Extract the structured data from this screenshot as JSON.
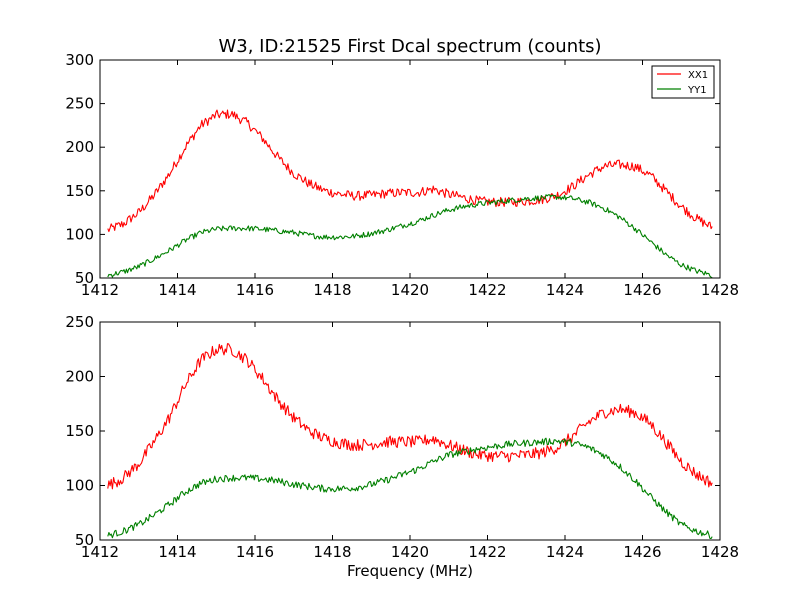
{
  "figure": {
    "title": "W3, ID:21525 First Dcal spectrum (counts)",
    "xlabel": "Frequency (MHz)"
  },
  "colors": {
    "XX1": "#ff0000",
    "YY1": "#008000"
  },
  "chart_data": [
    {
      "type": "line",
      "title": "W3, ID:21525 First Dcal spectrum (counts)",
      "xlabel": "",
      "ylabel": "",
      "xlim": [
        1412,
        1428
      ],
      "ylim": [
        50,
        300
      ],
      "xticks": [
        1412,
        1414,
        1416,
        1418,
        1420,
        1422,
        1424,
        1426,
        1428
      ],
      "yticks": [
        50,
        100,
        150,
        200,
        250,
        300
      ],
      "legend": {
        "placement": "top-right",
        "entries": [
          "XX1",
          "YY1"
        ]
      },
      "grid": false,
      "series": [
        {
          "name": "XX1",
          "color": "#ff0000",
          "x": [
            1412.2,
            1412.6,
            1413.0,
            1413.4,
            1413.8,
            1414.2,
            1414.6,
            1415.0,
            1415.4,
            1415.8,
            1416.2,
            1416.6,
            1417.0,
            1417.4,
            1417.8,
            1418.2,
            1418.6,
            1419.0,
            1419.4,
            1419.8,
            1420.2,
            1420.6,
            1421.0,
            1421.4,
            1421.8,
            1422.2,
            1422.6,
            1423.0,
            1423.4,
            1423.8,
            1424.2,
            1424.6,
            1425.0,
            1425.4,
            1425.8,
            1426.2,
            1426.6,
            1427.0,
            1427.4,
            1427.8
          ],
          "values": [
            105,
            112,
            125,
            145,
            170,
            200,
            225,
            237,
            238,
            228,
            210,
            188,
            170,
            158,
            150,
            146,
            144,
            145,
            147,
            148,
            148,
            152,
            146,
            142,
            138,
            137,
            137,
            138,
            140,
            145,
            155,
            168,
            178,
            180,
            178,
            168,
            150,
            132,
            118,
            108
          ]
        },
        {
          "name": "YY1",
          "color": "#008000",
          "x": [
            1412.2,
            1412.6,
            1413.0,
            1413.4,
            1413.8,
            1414.2,
            1414.6,
            1415.0,
            1415.4,
            1415.8,
            1416.2,
            1416.6,
            1417.0,
            1417.4,
            1417.8,
            1418.2,
            1418.6,
            1419.0,
            1419.4,
            1419.8,
            1420.2,
            1420.6,
            1421.0,
            1421.4,
            1421.8,
            1422.2,
            1422.6,
            1423.0,
            1423.4,
            1423.8,
            1424.2,
            1424.6,
            1425.0,
            1425.4,
            1425.8,
            1426.2,
            1426.6,
            1427.0,
            1427.4,
            1427.8
          ],
          "values": [
            53,
            57,
            63,
            72,
            82,
            93,
            102,
            106,
            107,
            107,
            106,
            104,
            102,
            99,
            97,
            97,
            98,
            101,
            105,
            110,
            115,
            122,
            128,
            132,
            135,
            137,
            139,
            141,
            142,
            143,
            141,
            137,
            130,
            120,
            107,
            92,
            77,
            65,
            58,
            53
          ]
        }
      ]
    },
    {
      "type": "line",
      "title": "",
      "xlabel": "Frequency (MHz)",
      "ylabel": "",
      "xlim": [
        1412,
        1428
      ],
      "ylim": [
        50,
        250
      ],
      "xticks": [
        1412,
        1414,
        1416,
        1418,
        1420,
        1422,
        1424,
        1426,
        1428
      ],
      "yticks": [
        50,
        100,
        150,
        200,
        250
      ],
      "grid": false,
      "series": [
        {
          "name": "XX1",
          "color": "#ff0000",
          "x": [
            1412.2,
            1412.6,
            1413.0,
            1413.4,
            1413.8,
            1414.2,
            1414.6,
            1415.0,
            1415.4,
            1415.8,
            1416.2,
            1416.6,
            1417.0,
            1417.4,
            1417.8,
            1418.2,
            1418.6,
            1419.0,
            1419.4,
            1419.8,
            1420.2,
            1420.6,
            1421.0,
            1421.4,
            1421.8,
            1422.2,
            1422.6,
            1423.0,
            1423.4,
            1423.8,
            1424.2,
            1424.6,
            1425.0,
            1425.4,
            1425.8,
            1426.2,
            1426.6,
            1427.0,
            1427.4,
            1427.8
          ],
          "values": [
            100,
            107,
            120,
            140,
            163,
            192,
            215,
            225,
            225,
            215,
            198,
            178,
            162,
            150,
            143,
            139,
            137,
            138,
            140,
            140,
            140,
            143,
            137,
            132,
            128,
            127,
            127,
            128,
            130,
            135,
            145,
            158,
            167,
            170,
            167,
            157,
            140,
            122,
            110,
            102
          ]
        },
        {
          "name": "YY1",
          "color": "#008000",
          "x": [
            1412.2,
            1412.6,
            1413.0,
            1413.4,
            1413.8,
            1414.2,
            1414.6,
            1415.0,
            1415.4,
            1415.8,
            1416.2,
            1416.6,
            1417.0,
            1417.4,
            1417.8,
            1418.2,
            1418.6,
            1419.0,
            1419.4,
            1419.8,
            1420.2,
            1420.6,
            1421.0,
            1421.4,
            1421.8,
            1422.2,
            1422.6,
            1423.0,
            1423.4,
            1423.8,
            1424.2,
            1424.6,
            1425.0,
            1425.4,
            1425.8,
            1426.2,
            1426.6,
            1427.0,
            1427.4,
            1427.8
          ],
          "values": [
            54,
            58,
            64,
            73,
            83,
            94,
            102,
            106,
            107,
            107,
            106,
            104,
            101,
            99,
            97,
            97,
            98,
            101,
            105,
            110,
            115,
            122,
            128,
            131,
            134,
            136,
            138,
            139,
            140,
            141,
            139,
            135,
            128,
            118,
            105,
            90,
            76,
            64,
            58,
            54
          ]
        }
      ]
    }
  ]
}
